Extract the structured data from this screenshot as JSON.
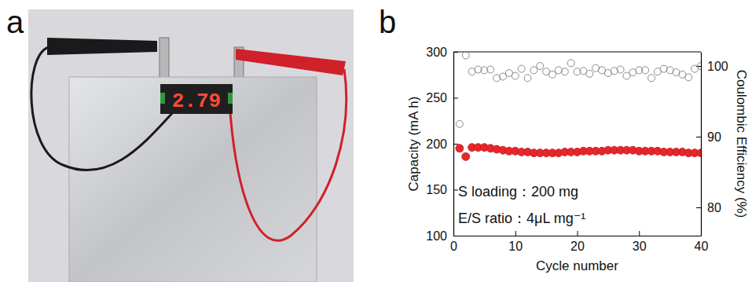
{
  "photo": {
    "panel": "a",
    "display": "2.79"
  },
  "chart_data": {
    "type": "scatter",
    "panel": "b",
    "x_label": "Cycle number",
    "y_label": "Capacity (mA h)",
    "y2_label": "Coulombic Efficiency (%)",
    "annotations": [
      "S loading：200 mg",
      "E/S ratio：4μL mg⁻¹"
    ],
    "x": [
      1,
      2,
      3,
      4,
      5,
      6,
      7,
      8,
      9,
      10,
      11,
      12,
      13,
      14,
      15,
      16,
      17,
      18,
      19,
      20,
      21,
      22,
      23,
      24,
      25,
      26,
      27,
      28,
      29,
      30,
      31,
      32,
      33,
      34,
      35,
      36,
      37,
      38,
      39,
      40
    ],
    "xlim": [
      0,
      40
    ],
    "xticks": [
      0,
      10,
      20,
      30,
      40
    ],
    "ylim": [
      100,
      300
    ],
    "yticks": [
      100,
      150,
      200,
      250,
      300
    ],
    "y2lim": [
      76,
      102
    ],
    "y2ticks": [
      80,
      90,
      100
    ],
    "series": [
      {
        "color": "#e8262a",
        "marker": "filled-circle",
        "values": [
          195,
          186,
          196,
          196,
          196,
          195,
          194,
          193,
          192,
          192,
          191,
          191,
          190,
          190,
          190,
          190,
          190,
          191,
          191,
          191,
          192,
          192,
          192,
          192,
          193,
          193,
          193,
          193,
          193,
          192,
          192,
          192,
          192,
          191,
          191,
          191,
          191,
          190,
          190,
          190
        ]
      },
      {
        "color": "#8a8a8a",
        "marker": "open-circle",
        "axis": "y2",
        "values": [
          91.8,
          101.5,
          99.2,
          99.5,
          99.4,
          99.5,
          98.3,
          98.5,
          99.0,
          98.6,
          99.6,
          98.3,
          99.4,
          100.0,
          99.2,
          98.8,
          99.4,
          99.2,
          100.4,
          99.2,
          99.3,
          98.9,
          99.7,
          99.4,
          99.0,
          99.3,
          99.5,
          98.6,
          99.1,
          99.4,
          99.4,
          98.3,
          99.2,
          99.6,
          99.4,
          99.1,
          98.8,
          98.4,
          99.6,
          100.0
        ]
      }
    ]
  }
}
